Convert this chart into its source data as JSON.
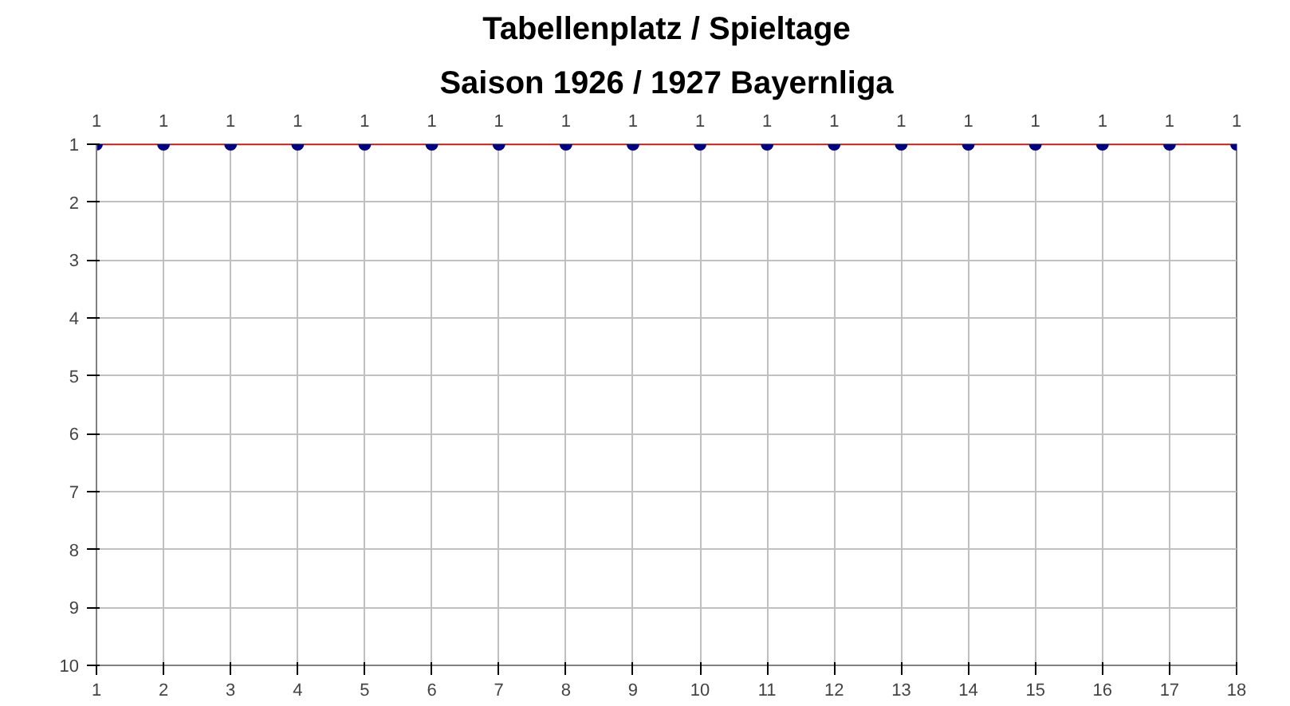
{
  "chart_data": {
    "type": "line",
    "title": "Tabellenplatz / Spieltage",
    "subtitle": "Saison 1926 / 1927 Bayernliga",
    "x": [
      1,
      2,
      3,
      4,
      5,
      6,
      7,
      8,
      9,
      10,
      11,
      12,
      13,
      14,
      15,
      16,
      17,
      18
    ],
    "series": [
      {
        "color": "#ff0000",
        "colors": [
          "#000080",
          "#000080",
          "#000080",
          "#000080",
          "#000080",
          "#000080",
          "#000080",
          "#000080",
          "#000080",
          "#000080",
          "#000080",
          "#000080",
          "#000080",
          "#000080",
          "#000080",
          "#000080",
          "#000080",
          "#000080"
        ],
        "values": [
          1,
          1,
          1,
          1,
          1,
          1,
          1,
          1,
          1,
          1,
          1,
          1,
          1,
          1,
          1,
          1,
          1,
          1
        ]
      }
    ],
    "xlim": [
      1,
      18
    ],
    "xticks": [
      1,
      2,
      3,
      4,
      5,
      6,
      7,
      8,
      9,
      10,
      11,
      12,
      13,
      14,
      15,
      16,
      17,
      18
    ],
    "ylim": [
      10,
      1
    ],
    "yticks": [
      1,
      2,
      3,
      4,
      5,
      6,
      7,
      8,
      9,
      10
    ],
    "grid": true,
    "marker": "circle",
    "line_style": "solid",
    "data_labels": true,
    "legend": false
  }
}
